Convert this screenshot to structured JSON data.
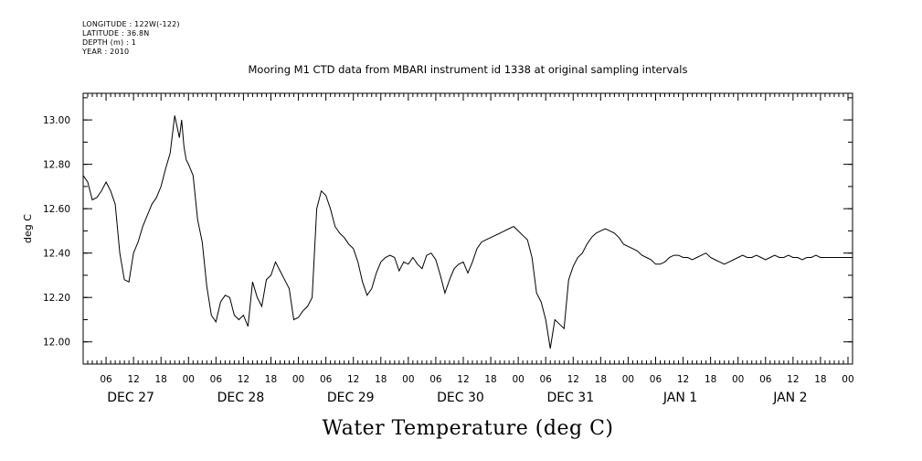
{
  "meta": {
    "longitude": "LONGITUDE : 122W(-122)",
    "latitude": "LATITUDE : 36.8N",
    "depth": "DEPTH (m) : 1",
    "year": "YEAR : 2010"
  },
  "chart_data": {
    "type": "line",
    "title": "Mooring M1 CTD data from MBARI instrument id 1338 at original sampling intervals",
    "xlabel": "Water Temperature (deg C)",
    "ylabel": "deg C",
    "x_units": "hours since 2010-12-27 00:00",
    "xlim": [
      1,
      169
    ],
    "ylim": [
      11.9,
      13.12
    ],
    "yticks": [
      12.0,
      12.2,
      12.4,
      12.6,
      12.8,
      13.0
    ],
    "ytick_labels": [
      "12.00",
      "12.20",
      "12.40",
      "12.60",
      "12.80",
      "13.00"
    ],
    "hour_tick_labels": [
      "06",
      "12",
      "18",
      "00",
      "06",
      "12",
      "18",
      "00",
      "06",
      "12",
      "18",
      "00",
      "06",
      "12",
      "18",
      "00",
      "06",
      "12",
      "18",
      "00",
      "06",
      "12",
      "18",
      "00",
      "06",
      "12",
      "18",
      "00"
    ],
    "day_labels": [
      "DEC 27",
      "DEC 28",
      "DEC 29",
      "DEC 30",
      "DEC 31",
      "JAN  1",
      "JAN  2"
    ],
    "grid": false,
    "series": [
      {
        "x": [
          1,
          2,
          3,
          4,
          5,
          6,
          7,
          8,
          9,
          10,
          11,
          12,
          13,
          14,
          15,
          16,
          17,
          18,
          19,
          20,
          21,
          22,
          22.5,
          23,
          23.5,
          24,
          25,
          26,
          27,
          28,
          29,
          30,
          31,
          32,
          33,
          34,
          35,
          36,
          37,
          38,
          39,
          40,
          41,
          42,
          43,
          44,
          45,
          46,
          47,
          48,
          49,
          50,
          51,
          52,
          53,
          54,
          55,
          56,
          57,
          58,
          59,
          60,
          61,
          62,
          63,
          64,
          65,
          66,
          67,
          68,
          69,
          70,
          71,
          72,
          73,
          74,
          75,
          76,
          77,
          78,
          79,
          80,
          81,
          82,
          83,
          84,
          85,
          86,
          87,
          88,
          89,
          90,
          91,
          92,
          93,
          94,
          95,
          96,
          97,
          98,
          99,
          100,
          101,
          102,
          103,
          104,
          105,
          106,
          107,
          108,
          109,
          110,
          111,
          112,
          113,
          114,
          115,
          116,
          117,
          118,
          119,
          120,
          121,
          122,
          123,
          124,
          125,
          126,
          127,
          128,
          129,
          130,
          131,
          132,
          133,
          134,
          135,
          136,
          137,
          138,
          139,
          140,
          141,
          142,
          143,
          144,
          145,
          146,
          147,
          148,
          149,
          150,
          151,
          152,
          153,
          154,
          155,
          156,
          157,
          158,
          159,
          160,
          161,
          162,
          163,
          164,
          165,
          166,
          167,
          168,
          169
        ],
        "y": [
          12.75,
          12.72,
          12.64,
          12.65,
          12.68,
          12.72,
          12.68,
          12.62,
          12.4,
          12.28,
          12.27,
          12.4,
          12.45,
          12.52,
          12.57,
          12.62,
          12.65,
          12.7,
          12.78,
          12.85,
          13.02,
          12.92,
          13.0,
          12.88,
          12.82,
          12.8,
          12.75,
          12.55,
          12.45,
          12.25,
          12.12,
          12.09,
          12.18,
          12.21,
          12.2,
          12.12,
          12.1,
          12.12,
          12.07,
          12.27,
          12.2,
          12.16,
          12.28,
          12.3,
          12.36,
          12.32,
          12.28,
          12.24,
          12.1,
          12.11,
          12.14,
          12.16,
          12.2,
          12.6,
          12.68,
          12.66,
          12.6,
          12.52,
          12.49,
          12.47,
          12.44,
          12.42,
          12.36,
          12.27,
          12.21,
          12.24,
          12.31,
          12.36,
          12.38,
          12.39,
          12.38,
          12.32,
          12.36,
          12.35,
          12.38,
          12.35,
          12.33,
          12.39,
          12.4,
          12.37,
          12.3,
          12.22,
          12.28,
          12.33,
          12.35,
          12.36,
          12.31,
          12.36,
          12.42,
          12.45,
          12.46,
          12.47,
          12.48,
          12.49,
          12.5,
          12.51,
          12.52,
          12.5,
          12.48,
          12.46,
          12.38,
          12.22,
          12.18,
          12.1,
          11.97,
          12.1,
          12.08,
          12.06,
          12.28,
          12.34,
          12.38,
          12.4,
          12.44,
          12.47,
          12.49,
          12.5,
          12.51,
          12.5,
          12.49,
          12.47,
          12.44,
          12.43,
          12.42,
          12.41,
          12.39,
          12.38,
          12.37,
          12.35,
          12.35,
          12.36,
          12.38,
          12.39,
          12.39,
          12.38,
          12.38,
          12.37,
          12.38,
          12.39,
          12.4,
          12.38,
          12.37,
          12.36,
          12.35,
          12.36,
          12.37,
          12.38,
          12.39,
          12.38,
          12.38,
          12.39,
          12.38,
          12.37,
          12.38,
          12.39,
          12.38,
          12.38,
          12.39,
          12.38,
          12.38,
          12.37,
          12.38,
          12.38,
          12.39,
          12.38,
          12.38,
          12.38,
          12.38,
          12.38,
          12.38,
          12.38,
          12.38
        ]
      }
    ]
  }
}
